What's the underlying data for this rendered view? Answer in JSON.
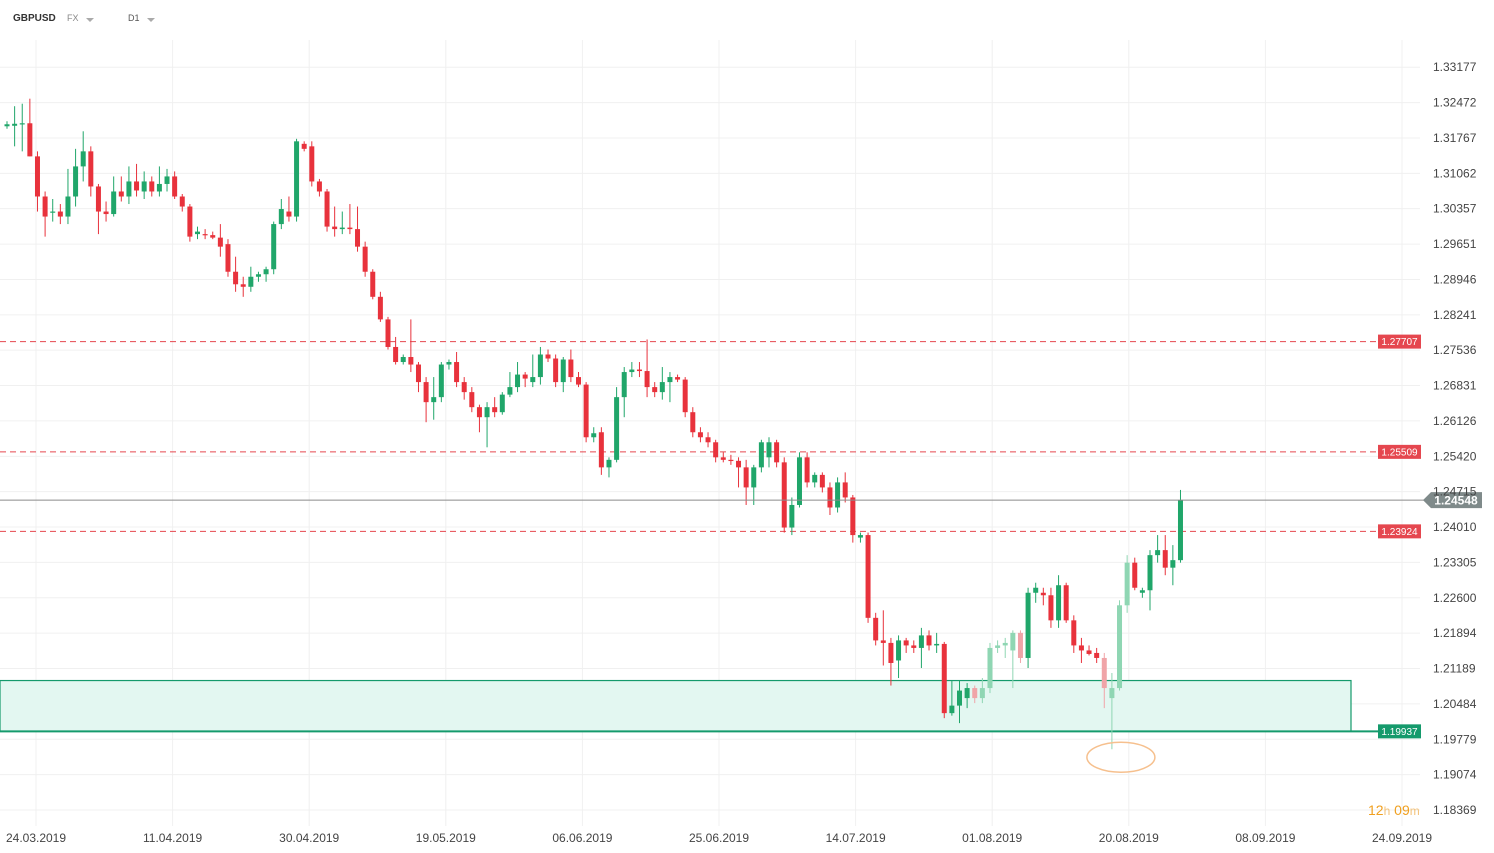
{
  "toolbar": {
    "symbol": "GBPUSD",
    "market": "FX",
    "timeframe": "D1"
  },
  "countdown": {
    "hours": "12",
    "hours_unit": "h",
    "minutes": "09",
    "minutes_unit": "m"
  },
  "colors": {
    "bull": "#20a66a",
    "bear": "#e8323c",
    "bull_faded": "#8fd6b3",
    "bear_faded": "#f0a4a8",
    "level_line": "#e5474f",
    "zone_fill": "#e3f7f1",
    "zone_stroke": "#159a6c",
    "price_line": "#8b8b8b",
    "current_tag": "#7f8a8a",
    "marker": "#f6c08e"
  },
  "chart_data": {
    "type": "candlestick",
    "symbol": "GBPUSD",
    "timeframe": "D1",
    "y_ticks": [
      "1.33177",
      "1.32472",
      "1.31767",
      "1.31062",
      "1.30357",
      "1.29651",
      "1.28946",
      "1.28241",
      "1.27536",
      "1.26831",
      "1.26126",
      "1.25420",
      "1.24715",
      "1.24010",
      "1.23305",
      "1.22600",
      "1.21894",
      "1.21189",
      "1.20484",
      "1.19779",
      "1.19074",
      "1.18369"
    ],
    "ylim": [
      1.1805,
      1.3372
    ],
    "x_labels": [
      "24.03.2019",
      "11.04.2019",
      "30.04.2019",
      "19.05.2019",
      "06.06.2019",
      "25.06.2019",
      "14.07.2019",
      "01.08.2019",
      "20.08.2019",
      "08.09.2019",
      "24.09.2019"
    ],
    "grid": true,
    "current_price": "1.24548",
    "levels": [
      {
        "value": 1.27707,
        "label": "1.27707"
      },
      {
        "value": 1.25509,
        "label": "1.25509"
      },
      {
        "value": 1.23924,
        "label": "1.23924"
      }
    ],
    "support_zone": {
      "low": 1.19937,
      "high": 1.2095,
      "label": "1.19937"
    },
    "wick_marker_price": 1.1958,
    "candles": [
      {
        "o": 1.32,
        "h": 1.321,
        "l": 1.3195,
        "c": 1.3204
      },
      {
        "o": 1.3201,
        "h": 1.324,
        "l": 1.316,
        "c": 1.3205
      },
      {
        "o": 1.3205,
        "h": 1.3245,
        "l": 1.315,
        "c": 1.3206
      },
      {
        "o": 1.3206,
        "h": 1.3255,
        "l": 1.314,
        "c": 1.314
      },
      {
        "o": 1.314,
        "h": 1.315,
        "l": 1.303,
        "c": 1.306
      },
      {
        "o": 1.306,
        "h": 1.307,
        "l": 1.298,
        "c": 1.302
      },
      {
        "o": 1.3028,
        "h": 1.3055,
        "l": 1.301,
        "c": 1.303
      },
      {
        "o": 1.303,
        "h": 1.3045,
        "l": 1.3005,
        "c": 1.302
      },
      {
        "o": 1.302,
        "h": 1.3115,
        "l": 1.3005,
        "c": 1.306
      },
      {
        "o": 1.306,
        "h": 1.3155,
        "l": 1.304,
        "c": 1.312
      },
      {
        "o": 1.312,
        "h": 1.319,
        "l": 1.309,
        "c": 1.315
      },
      {
        "o": 1.315,
        "h": 1.316,
        "l": 1.306,
        "c": 1.308
      },
      {
        "o": 1.308,
        "h": 1.3085,
        "l": 1.2985,
        "c": 1.303
      },
      {
        "o": 1.303,
        "h": 1.305,
        "l": 1.301,
        "c": 1.3025
      },
      {
        "o": 1.3025,
        "h": 1.31,
        "l": 1.302,
        "c": 1.307
      },
      {
        "o": 1.307,
        "h": 1.31,
        "l": 1.305,
        "c": 1.306
      },
      {
        "o": 1.306,
        "h": 1.312,
        "l": 1.3045,
        "c": 1.309
      },
      {
        "o": 1.309,
        "h": 1.3125,
        "l": 1.306,
        "c": 1.3072
      },
      {
        "o": 1.307,
        "h": 1.311,
        "l": 1.3055,
        "c": 1.309
      },
      {
        "o": 1.309,
        "h": 1.31,
        "l": 1.306,
        "c": 1.307
      },
      {
        "o": 1.307,
        "h": 1.312,
        "l": 1.306,
        "c": 1.3085
      },
      {
        "o": 1.3085,
        "h": 1.3115,
        "l": 1.307,
        "c": 1.31
      },
      {
        "o": 1.31,
        "h": 1.311,
        "l": 1.3055,
        "c": 1.306
      },
      {
        "o": 1.306,
        "h": 1.3065,
        "l": 1.303,
        "c": 1.304
      },
      {
        "o": 1.304,
        "h": 1.3045,
        "l": 1.297,
        "c": 1.298
      },
      {
        "o": 1.2985,
        "h": 1.3,
        "l": 1.2975,
        "c": 1.299
      },
      {
        "o": 1.2985,
        "h": 1.2995,
        "l": 1.2975,
        "c": 1.2983
      },
      {
        "o": 1.2983,
        "h": 1.299,
        "l": 1.2975,
        "c": 1.2978
      },
      {
        "o": 1.2978,
        "h": 1.3005,
        "l": 1.294,
        "c": 1.296
      },
      {
        "o": 1.2965,
        "h": 1.2975,
        "l": 1.29,
        "c": 1.291
      },
      {
        "o": 1.291,
        "h": 1.294,
        "l": 1.287,
        "c": 1.2885
      },
      {
        "o": 1.2885,
        "h": 1.29,
        "l": 1.286,
        "c": 1.288
      },
      {
        "o": 1.288,
        "h": 1.292,
        "l": 1.287,
        "c": 1.29
      },
      {
        "o": 1.29,
        "h": 1.291,
        "l": 1.289,
        "c": 1.2905
      },
      {
        "o": 1.2905,
        "h": 1.292,
        "l": 1.289,
        "c": 1.2915
      },
      {
        "o": 1.2915,
        "h": 1.301,
        "l": 1.2905,
        "c": 1.3005
      },
      {
        "o": 1.3005,
        "h": 1.3055,
        "l": 1.2995,
        "c": 1.3035
      },
      {
        "o": 1.303,
        "h": 1.306,
        "l": 1.301,
        "c": 1.302
      },
      {
        "o": 1.302,
        "h": 1.3175,
        "l": 1.301,
        "c": 1.317
      },
      {
        "o": 1.3165,
        "h": 1.317,
        "l": 1.315,
        "c": 1.3155
      },
      {
        "o": 1.316,
        "h": 1.317,
        "l": 1.308,
        "c": 1.309
      },
      {
        "o": 1.309,
        "h": 1.3095,
        "l": 1.306,
        "c": 1.307
      },
      {
        "o": 1.307,
        "h": 1.3075,
        "l": 1.299,
        "c": 1.3
      },
      {
        "o": 1.3,
        "h": 1.304,
        "l": 1.298,
        "c": 1.2995
      },
      {
        "o": 1.2995,
        "h": 1.303,
        "l": 1.2985,
        "c": 1.2998
      },
      {
        "o": 1.2998,
        "h": 1.3045,
        "l": 1.2985,
        "c": 1.2995
      },
      {
        "o": 1.2995,
        "h": 1.304,
        "l": 1.295,
        "c": 1.296
      },
      {
        "o": 1.296,
        "h": 1.297,
        "l": 1.29,
        "c": 1.291
      },
      {
        "o": 1.291,
        "h": 1.2915,
        "l": 1.2855,
        "c": 1.286
      },
      {
        "o": 1.286,
        "h": 1.287,
        "l": 1.281,
        "c": 1.2815
      },
      {
        "o": 1.2815,
        "h": 1.282,
        "l": 1.2755,
        "c": 1.276
      },
      {
        "o": 1.276,
        "h": 1.278,
        "l": 1.2725,
        "c": 1.273
      },
      {
        "o": 1.273,
        "h": 1.2745,
        "l": 1.2725,
        "c": 1.274
      },
      {
        "o": 1.274,
        "h": 1.2815,
        "l": 1.271,
        "c": 1.2725
      },
      {
        "o": 1.2725,
        "h": 1.273,
        "l": 1.267,
        "c": 1.269
      },
      {
        "o": 1.269,
        "h": 1.27,
        "l": 1.261,
        "c": 1.265
      },
      {
        "o": 1.265,
        "h": 1.27,
        "l": 1.2615,
        "c": 1.266
      },
      {
        "o": 1.266,
        "h": 1.273,
        "l": 1.265,
        "c": 1.2725
      },
      {
        "o": 1.2725,
        "h": 1.2735,
        "l": 1.2715,
        "c": 1.273
      },
      {
        "o": 1.273,
        "h": 1.275,
        "l": 1.268,
        "c": 1.269
      },
      {
        "o": 1.269,
        "h": 1.27,
        "l": 1.2655,
        "c": 1.267
      },
      {
        "o": 1.267,
        "h": 1.268,
        "l": 1.263,
        "c": 1.264
      },
      {
        "o": 1.264,
        "h": 1.2645,
        "l": 1.259,
        "c": 1.262
      },
      {
        "o": 1.262,
        "h": 1.265,
        "l": 1.256,
        "c": 1.264
      },
      {
        "o": 1.264,
        "h": 1.266,
        "l": 1.262,
        "c": 1.263
      },
      {
        "o": 1.263,
        "h": 1.267,
        "l": 1.2625,
        "c": 1.2665
      },
      {
        "o": 1.2665,
        "h": 1.271,
        "l": 1.266,
        "c": 1.268
      },
      {
        "o": 1.268,
        "h": 1.273,
        "l": 1.267,
        "c": 1.2705
      },
      {
        "o": 1.2705,
        "h": 1.271,
        "l": 1.268,
        "c": 1.2697
      },
      {
        "o": 1.269,
        "h": 1.2745,
        "l": 1.268,
        "c": 1.27
      },
      {
        "o": 1.27,
        "h": 1.276,
        "l": 1.2685,
        "c": 1.2745
      },
      {
        "o": 1.2745,
        "h": 1.2755,
        "l": 1.273,
        "c": 1.2737
      },
      {
        "o": 1.2737,
        "h": 1.2745,
        "l": 1.268,
        "c": 1.269
      },
      {
        "o": 1.269,
        "h": 1.274,
        "l": 1.267,
        "c": 1.2735
      },
      {
        "o": 1.2735,
        "h": 1.2755,
        "l": 1.269,
        "c": 1.27
      },
      {
        "o": 1.27,
        "h": 1.271,
        "l": 1.268,
        "c": 1.2685
      },
      {
        "o": 1.2685,
        "h": 1.269,
        "l": 1.257,
        "c": 1.258
      },
      {
        "o": 1.258,
        "h": 1.26,
        "l": 1.257,
        "c": 1.2588
      },
      {
        "o": 1.259,
        "h": 1.26,
        "l": 1.2505,
        "c": 1.252
      },
      {
        "o": 1.252,
        "h": 1.254,
        "l": 1.25,
        "c": 1.2535
      },
      {
        "o": 1.2535,
        "h": 1.268,
        "l": 1.253,
        "c": 1.266
      },
      {
        "o": 1.266,
        "h": 1.272,
        "l": 1.262,
        "c": 1.271
      },
      {
        "o": 1.271,
        "h": 1.273,
        "l": 1.27,
        "c": 1.2715
      },
      {
        "o": 1.2715,
        "h": 1.273,
        "l": 1.27,
        "c": 1.2712
      },
      {
        "o": 1.2712,
        "h": 1.2775,
        "l": 1.266,
        "c": 1.268
      },
      {
        "o": 1.268,
        "h": 1.269,
        "l": 1.266,
        "c": 1.267
      },
      {
        "o": 1.267,
        "h": 1.272,
        "l": 1.2655,
        "c": 1.269
      },
      {
        "o": 1.269,
        "h": 1.271,
        "l": 1.265,
        "c": 1.27
      },
      {
        "o": 1.27,
        "h": 1.2705,
        "l": 1.269,
        "c": 1.2695
      },
      {
        "o": 1.2695,
        "h": 1.27,
        "l": 1.262,
        "c": 1.263
      },
      {
        "o": 1.263,
        "h": 1.264,
        "l": 1.258,
        "c": 1.259
      },
      {
        "o": 1.259,
        "h": 1.26,
        "l": 1.257,
        "c": 1.258
      },
      {
        "o": 1.258,
        "h": 1.259,
        "l": 1.256,
        "c": 1.257
      },
      {
        "o": 1.257,
        "h": 1.2575,
        "l": 1.253,
        "c": 1.254
      },
      {
        "o": 1.254,
        "h": 1.255,
        "l": 1.253,
        "c": 1.2535
      },
      {
        "o": 1.2535,
        "h": 1.2545,
        "l": 1.2525,
        "c": 1.2533
      },
      {
        "o": 1.2533,
        "h": 1.254,
        "l": 1.248,
        "c": 1.252
      },
      {
        "o": 1.252,
        "h": 1.2535,
        "l": 1.2445,
        "c": 1.248
      },
      {
        "o": 1.248,
        "h": 1.2525,
        "l": 1.2445,
        "c": 1.252
      },
      {
        "o": 1.252,
        "h": 1.2575,
        "l": 1.251,
        "c": 1.257
      },
      {
        "o": 1.254,
        "h": 1.258,
        "l": 1.252,
        "c": 1.257
      },
      {
        "o": 1.257,
        "h": 1.2575,
        "l": 1.252,
        "c": 1.253
      },
      {
        "o": 1.253,
        "h": 1.254,
        "l": 1.239,
        "c": 1.24
      },
      {
        "o": 1.24,
        "h": 1.246,
        "l": 1.2385,
        "c": 1.2445
      },
      {
        "o": 1.2445,
        "h": 1.255,
        "l": 1.244,
        "c": 1.254
      },
      {
        "o": 1.254,
        "h": 1.255,
        "l": 1.248,
        "c": 1.249
      },
      {
        "o": 1.249,
        "h": 1.251,
        "l": 1.248,
        "c": 1.2505
      },
      {
        "o": 1.2505,
        "h": 1.251,
        "l": 1.247,
        "c": 1.248
      },
      {
        "o": 1.248,
        "h": 1.249,
        "l": 1.2425,
        "c": 1.244
      },
      {
        "o": 1.244,
        "h": 1.25,
        "l": 1.243,
        "c": 1.249
      },
      {
        "o": 1.249,
        "h": 1.251,
        "l": 1.245,
        "c": 1.246
      },
      {
        "o": 1.246,
        "h": 1.2465,
        "l": 1.237,
        "c": 1.2385
      },
      {
        "o": 1.238,
        "h": 1.239,
        "l": 1.237,
        "c": 1.2385
      },
      {
        "o": 1.2385,
        "h": 1.239,
        "l": 1.221,
        "c": 1.222
      },
      {
        "o": 1.222,
        "h": 1.223,
        "l": 1.2165,
        "c": 1.2175
      },
      {
        "o": 1.2175,
        "h": 1.2235,
        "l": 1.2125,
        "c": 1.217
      },
      {
        "o": 1.217,
        "h": 1.218,
        "l": 1.2085,
        "c": 1.213
      },
      {
        "o": 1.2135,
        "h": 1.2185,
        "l": 1.21,
        "c": 1.2175
      },
      {
        "o": 1.2175,
        "h": 1.218,
        "l": 1.215,
        "c": 1.2165
      },
      {
        "o": 1.2165,
        "h": 1.2175,
        "l": 1.215,
        "c": 1.216
      },
      {
        "o": 1.216,
        "h": 1.22,
        "l": 1.212,
        "c": 1.2185
      },
      {
        "o": 1.2185,
        "h": 1.2195,
        "l": 1.2155,
        "c": 1.2165
      },
      {
        "o": 1.2165,
        "h": 1.219,
        "l": 1.215,
        "c": 1.2168
      },
      {
        "o": 1.2168,
        "h": 1.2172,
        "l": 1.202,
        "c": 1.203
      },
      {
        "o": 1.203,
        "h": 1.2095,
        "l": 1.2025,
        "c": 1.2045
      },
      {
        "o": 1.2045,
        "h": 1.2095,
        "l": 1.201,
        "c": 1.2075
      },
      {
        "o": 1.206,
        "h": 1.209,
        "l": 1.204,
        "c": 1.208
      },
      {
        "o": 1.208,
        "h": 1.2085,
        "l": 1.205,
        "c": 1.206
      },
      {
        "o": 1.206,
        "h": 1.21,
        "l": 1.205,
        "c": 1.208
      },
      {
        "o": 1.208,
        "h": 1.217,
        "l": 1.207,
        "c": 1.216
      },
      {
        "o": 1.216,
        "h": 1.2175,
        "l": 1.215,
        "c": 1.2165
      },
      {
        "o": 1.2165,
        "h": 1.218,
        "l": 1.214,
        "c": 1.217
      },
      {
        "o": 1.2155,
        "h": 1.2195,
        "l": 1.208,
        "c": 1.219
      },
      {
        "o": 1.219,
        "h": 1.2195,
        "l": 1.213,
        "c": 1.214
      },
      {
        "o": 1.214,
        "h": 1.228,
        "l": 1.212,
        "c": 1.227
      },
      {
        "o": 1.227,
        "h": 1.229,
        "l": 1.225,
        "c": 1.228
      },
      {
        "o": 1.227,
        "h": 1.228,
        "l": 1.2245,
        "c": 1.2265
      },
      {
        "o": 1.2265,
        "h": 1.228,
        "l": 1.22,
        "c": 1.2215
      },
      {
        "o": 1.2215,
        "h": 1.2305,
        "l": 1.22,
        "c": 1.2285
      },
      {
        "o": 1.2285,
        "h": 1.229,
        "l": 1.221,
        "c": 1.2215
      },
      {
        "o": 1.2215,
        "h": 1.2225,
        "l": 1.215,
        "c": 1.2165
      },
      {
        "o": 1.2165,
        "h": 1.218,
        "l": 1.213,
        "c": 1.2155
      },
      {
        "o": 1.2155,
        "h": 1.2165,
        "l": 1.2145,
        "c": 1.2148
      },
      {
        "o": 1.215,
        "h": 1.216,
        "l": 1.213,
        "c": 1.214
      },
      {
        "o": 1.214,
        "h": 1.215,
        "l": 1.204,
        "c": 1.208
      },
      {
        "o": 1.206,
        "h": 1.211,
        "l": 1.1958,
        "c": 1.208
      },
      {
        "o": 1.208,
        "h": 1.2255,
        "l": 1.2075,
        "c": 1.2245
      },
      {
        "o": 1.2245,
        "h": 1.2345,
        "l": 1.223,
        "c": 1.233
      },
      {
        "o": 1.233,
        "h": 1.234,
        "l": 1.2275,
        "c": 1.228
      },
      {
        "o": 1.227,
        "h": 1.228,
        "l": 1.226,
        "c": 1.2275
      },
      {
        "o": 1.2275,
        "h": 1.2355,
        "l": 1.2235,
        "c": 1.2345
      },
      {
        "o": 1.2345,
        "h": 1.2385,
        "l": 1.233,
        "c": 1.2355
      },
      {
        "o": 1.2355,
        "h": 1.2385,
        "l": 1.2305,
        "c": 1.232
      },
      {
        "o": 1.232,
        "h": 1.2365,
        "l": 1.2285,
        "c": 1.2335
      },
      {
        "o": 1.2335,
        "h": 1.2475,
        "l": 1.233,
        "c": 1.2455
      }
    ],
    "faded_ranges": [
      [
        127,
        133
      ],
      [
        144,
        147
      ]
    ]
  }
}
